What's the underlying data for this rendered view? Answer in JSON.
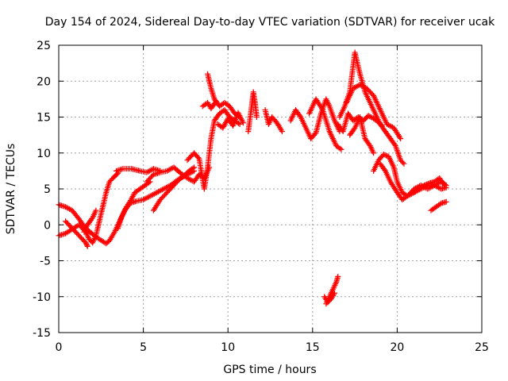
{
  "chart_data": {
    "type": "scatter",
    "title": "Day 154 of 2024, Sidereal Day-to-day VTEC variation (SDTVAR) for receiver ucak",
    "xlabel": "GPS time / hours",
    "ylabel": "SDTVAR / TECUs",
    "xlim": [
      0,
      25
    ],
    "ylim": [
      -15,
      25
    ],
    "xticks": [
      0,
      5,
      10,
      15,
      20,
      25
    ],
    "yticks": [
      -15,
      -10,
      -5,
      0,
      5,
      10,
      15,
      20,
      25
    ],
    "grid": true,
    "marker": "+",
    "color": "#ff0000",
    "series": [
      {
        "name": "SDTVAR",
        "segments": [
          [
            [
              0.0,
              2.8
            ],
            [
              0.4,
              2.5
            ],
            [
              0.8,
              2.0
            ],
            [
              1.2,
              0.8
            ],
            [
              1.6,
              -0.5
            ],
            [
              2.0,
              -1.3
            ],
            [
              2.4,
              -2.0
            ],
            [
              2.8,
              -2.6
            ],
            [
              3.0,
              -2.2
            ],
            [
              3.3,
              -1.0
            ],
            [
              3.6,
              0.5
            ],
            [
              3.9,
              2.0
            ],
            [
              4.2,
              3.0
            ],
            [
              4.6,
              3.3
            ],
            [
              5.0,
              3.5
            ],
            [
              5.4,
              4.0
            ],
            [
              5.8,
              4.5
            ],
            [
              6.2,
              5.0
            ],
            [
              6.6,
              5.5
            ],
            [
              7.0,
              6.2
            ],
            [
              7.4,
              6.8
            ],
            [
              7.7,
              7.5
            ],
            [
              8.0,
              8.0
            ]
          ],
          [
            [
              0.0,
              -1.5
            ],
            [
              0.4,
              -1.2
            ],
            [
              0.8,
              -0.6
            ],
            [
              1.2,
              0.0
            ],
            [
              1.6,
              -1.0
            ],
            [
              1.8,
              -2.0
            ],
            [
              2.0,
              -2.5
            ],
            [
              2.2,
              -1.5
            ],
            [
              2.4,
              0.5
            ],
            [
              2.6,
              2.5
            ],
            [
              2.8,
              4.5
            ],
            [
              3.0,
              6.0
            ],
            [
              3.2,
              6.5
            ],
            [
              3.5,
              7.2
            ]
          ],
          [
            [
              0.4,
              0.5
            ],
            [
              0.8,
              -0.5
            ],
            [
              1.2,
              -1.5
            ],
            [
              1.6,
              -2.5
            ],
            [
              1.7,
              -3.0
            ]
          ],
          [
            [
              1.5,
              -1.0
            ],
            [
              1.7,
              0.0
            ],
            [
              2.0,
              1.0
            ],
            [
              2.2,
              2.0
            ]
          ],
          [
            [
              3.5,
              -0.5
            ],
            [
              3.7,
              1.0
            ],
            [
              4.0,
              2.5
            ],
            [
              4.2,
              3.2
            ],
            [
              4.5,
              4.5
            ],
            [
              4.8,
              5.0
            ],
            [
              5.1,
              5.5
            ],
            [
              5.4,
              6.0
            ]
          ],
          [
            [
              3.4,
              7.5
            ],
            [
              3.8,
              7.8
            ],
            [
              4.3,
              7.8
            ],
            [
              4.8,
              7.5
            ],
            [
              5.2,
              7.3
            ],
            [
              5.6,
              7.8
            ],
            [
              6.0,
              7.5
            ]
          ],
          [
            [
              5.2,
              6.0
            ],
            [
              5.6,
              7.0
            ],
            [
              6.0,
              7.3
            ],
            [
              6.4,
              7.5
            ],
            [
              6.8,
              8.0
            ],
            [
              7.2,
              7.2
            ],
            [
              7.6,
              6.5
            ],
            [
              8.0,
              6.0
            ],
            [
              8.3,
              7.0
            ],
            [
              8.6,
              6.5
            ],
            [
              8.9,
              8.0
            ]
          ],
          [
            [
              5.6,
              2.0
            ],
            [
              6.0,
              3.5
            ],
            [
              6.4,
              4.5
            ],
            [
              6.8,
              5.5
            ],
            [
              7.2,
              6.5
            ],
            [
              7.6,
              7.0
            ],
            [
              8.0,
              7.5
            ]
          ],
          [
            [
              7.6,
              9.0
            ],
            [
              8.0,
              10.0
            ],
            [
              8.3,
              9.2
            ],
            [
              8.6,
              5.0
            ],
            [
              8.8,
              8.0
            ],
            [
              9.0,
              12.0
            ],
            [
              9.2,
              14.5
            ],
            [
              9.5,
              15.5
            ],
            [
              9.8,
              16.0
            ],
            [
              10.1,
              15.0
            ],
            [
              10.4,
              14.5
            ],
            [
              10.7,
              14.0
            ]
          ],
          [
            [
              8.8,
              21.0
            ],
            [
              9.0,
              19.0
            ],
            [
              9.2,
              17.5
            ],
            [
              9.5,
              16.5
            ],
            [
              9.8,
              17.0
            ],
            [
              10.1,
              16.5
            ],
            [
              10.4,
              15.5
            ],
            [
              10.7,
              15.0
            ]
          ],
          [
            [
              9.4,
              14.0
            ],
            [
              9.7,
              13.5
            ],
            [
              10.0,
              14.8
            ],
            [
              10.3,
              13.8
            ],
            [
              10.6,
              15.6
            ],
            [
              10.9,
              14.2
            ]
          ],
          [
            [
              8.5,
              16.5
            ],
            [
              8.8,
              17.0
            ],
            [
              9.0,
              16.2
            ],
            [
              9.3,
              17.2
            ]
          ],
          [
            [
              11.2,
              13.0
            ],
            [
              11.4,
              16.5
            ],
            [
              11.5,
              18.5
            ],
            [
              11.6,
              17.0
            ],
            [
              11.7,
              15.0
            ]
          ],
          [
            [
              12.2,
              16.0
            ],
            [
              12.4,
              14.0
            ],
            [
              12.6,
              15.0
            ],
            [
              12.8,
              14.5
            ],
            [
              13.0,
              13.8
            ],
            [
              13.2,
              13.0
            ]
          ],
          [
            [
              13.7,
              14.5
            ],
            [
              14.0,
              16.0
            ],
            [
              14.3,
              15.0
            ],
            [
              14.6,
              13.5
            ],
            [
              14.9,
              12.0
            ],
            [
              15.2,
              12.8
            ],
            [
              15.5,
              15.5
            ],
            [
              15.8,
              17.5
            ],
            [
              16.0,
              16.5
            ],
            [
              16.3,
              14.5
            ],
            [
              16.6,
              13.0
            ]
          ],
          [
            [
              14.8,
              15.5
            ],
            [
              15.2,
              17.5
            ],
            [
              15.6,
              16.0
            ],
            [
              16.0,
              13.0
            ],
            [
              16.4,
              11.0
            ],
            [
              16.7,
              10.5
            ]
          ],
          [
            [
              16.6,
              15.0
            ],
            [
              16.9,
              16.5
            ],
            [
              17.2,
              18.5
            ],
            [
              17.5,
              24.0
            ],
            [
              17.8,
              21.0
            ],
            [
              18.1,
              18.5
            ],
            [
              18.4,
              17.0
            ],
            [
              18.7,
              15.5
            ],
            [
              19.0,
              14.0
            ],
            [
              19.3,
              13.0
            ],
            [
              19.6,
              12.0
            ],
            [
              19.9,
              11.0
            ],
            [
              20.2,
              9.0
            ],
            [
              20.4,
              8.5
            ]
          ],
          [
            [
              17.0,
              17.0
            ],
            [
              17.4,
              19.0
            ],
            [
              17.8,
              19.5
            ],
            [
              18.2,
              19.0
            ],
            [
              18.6,
              18.0
            ],
            [
              19.0,
              16.0
            ],
            [
              19.4,
              14.0
            ],
            [
              19.8,
              13.5
            ],
            [
              20.2,
              12.0
            ]
          ],
          [
            [
              16.5,
              14.0
            ],
            [
              16.8,
              13.0
            ],
            [
              17.1,
              15.5
            ],
            [
              17.4,
              14.5
            ],
            [
              17.7,
              15.0
            ],
            [
              18.0,
              14.5
            ],
            [
              18.3,
              15.2
            ],
            [
              18.6,
              14.8
            ],
            [
              18.9,
              14.3
            ],
            [
              19.1,
              13.8
            ]
          ],
          [
            [
              17.2,
              12.5
            ],
            [
              17.5,
              13.5
            ],
            [
              17.8,
              15.0
            ],
            [
              18.1,
              12.0
            ],
            [
              18.4,
              11.0
            ],
            [
              18.6,
              10.0
            ]
          ],
          [
            [
              18.6,
              7.5
            ],
            [
              18.9,
              9.0
            ],
            [
              19.2,
              9.8
            ],
            [
              19.5,
              9.5
            ],
            [
              19.8,
              8.0
            ],
            [
              20.0,
              6.0
            ],
            [
              20.3,
              4.5
            ],
            [
              20.6,
              4.0
            ],
            [
              21.0,
              4.5
            ],
            [
              21.4,
              5.0
            ],
            [
              21.8,
              5.5
            ],
            [
              22.2,
              5.5
            ],
            [
              22.6,
              6.0
            ],
            [
              22.9,
              5.5
            ]
          ],
          [
            [
              19.0,
              8.5
            ],
            [
              19.3,
              7.5
            ],
            [
              19.6,
              6.0
            ],
            [
              20.0,
              4.5
            ],
            [
              20.3,
              3.5
            ],
            [
              20.6,
              4.0
            ],
            [
              21.0,
              5.0
            ],
            [
              21.4,
              5.5
            ],
            [
              21.8,
              5.0
            ],
            [
              22.2,
              5.5
            ],
            [
              22.6,
              5.0
            ],
            [
              22.9,
              5.2
            ]
          ],
          [
            [
              21.0,
              4.5
            ],
            [
              21.3,
              5.0
            ],
            [
              21.6,
              5.5
            ],
            [
              21.9,
              5.8
            ],
            [
              22.2,
              6.0
            ],
            [
              22.5,
              6.5
            ],
            [
              22.8,
              5.5
            ]
          ],
          [
            [
              22.0,
              2.0
            ],
            [
              22.3,
              2.5
            ],
            [
              22.6,
              3.0
            ],
            [
              22.9,
              3.2
            ]
          ],
          [
            [
              15.8,
              -11.0
            ],
            [
              16.0,
              -10.0
            ],
            [
              16.2,
              -9.0
            ],
            [
              16.4,
              -8.0
            ],
            [
              16.5,
              -7.2
            ]
          ],
          [
            [
              15.7,
              -10.0
            ],
            [
              15.9,
              -10.8
            ],
            [
              16.1,
              -10.3
            ],
            [
              16.3,
              -9.5
            ]
          ]
        ]
      }
    ]
  }
}
